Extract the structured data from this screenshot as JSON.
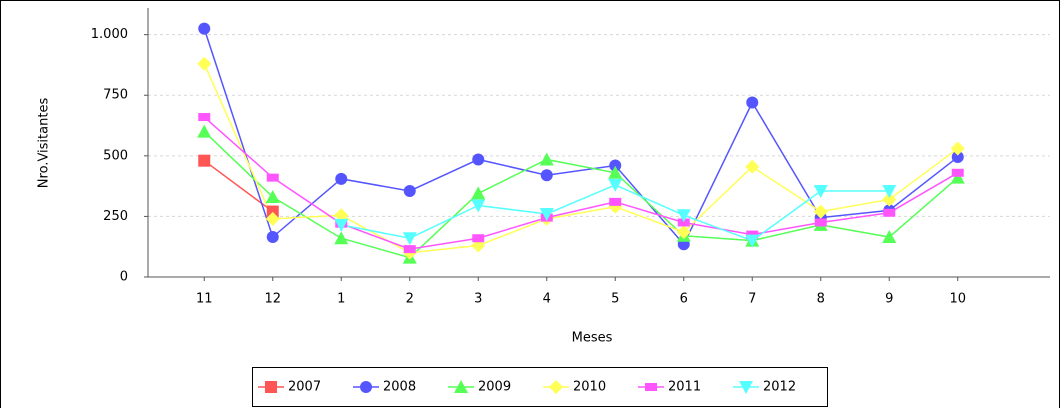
{
  "chart_data": {
    "type": "line",
    "x_label": "Meses",
    "y_label": "Nro.Visitantes",
    "categories": [
      "11",
      "12",
      "1",
      "2",
      "3",
      "4",
      "5",
      "6",
      "7",
      "8",
      "9",
      "10"
    ],
    "series": [
      {
        "name": "2007",
        "color": "#ff5555",
        "values": [
          480,
          270,
          null,
          null,
          null,
          null,
          null,
          null,
          null,
          null,
          null,
          null
        ]
      },
      {
        "name": "2008",
        "color": "#5555ff",
        "values": [
          1025,
          165,
          405,
          355,
          485,
          420,
          460,
          135,
          720,
          245,
          275,
          495
        ]
      },
      {
        "name": "2009",
        "color": "#55ff55",
        "values": [
          600,
          330,
          160,
          80,
          345,
          485,
          430,
          170,
          150,
          215,
          165,
          410
        ]
      },
      {
        "name": "2010",
        "color": "#ffff55",
        "values": [
          880,
          240,
          255,
          100,
          130,
          240,
          290,
          185,
          455,
          270,
          320,
          530
        ]
      },
      {
        "name": "2011",
        "color": "#ff55ff",
        "values": [
          660,
          410,
          220,
          115,
          160,
          245,
          310,
          225,
          175,
          225,
          265,
          430
        ]
      },
      {
        "name": "2012",
        "color": "#55ffff",
        "values": [
          null,
          null,
          215,
          160,
          295,
          260,
          380,
          255,
          150,
          355,
          355,
          null
        ]
      }
    ],
    "ylim": [
      0,
      1110
    ],
    "yticks": [
      0,
      250,
      500,
      750,
      {
        "value": 1000,
        "label": "1.000"
      }
    ],
    "grid": true,
    "legend": "bottom"
  }
}
